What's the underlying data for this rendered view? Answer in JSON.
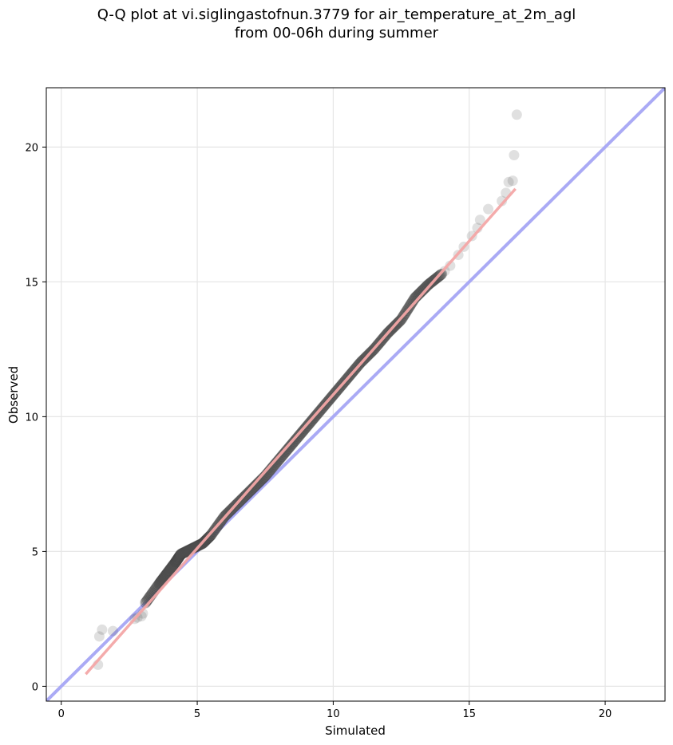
{
  "chart_data": {
    "type": "scatter",
    "title_line1": "Q-Q plot at vi.siglingastofnun.3779 for air_temperature_at_2m_agl",
    "title_line2": "from 00-06h during summer",
    "xlabel": "Simulated",
    "ylabel": "Observed",
    "xlim": [
      -0.55,
      22.2
    ],
    "ylim": [
      -0.55,
      22.2
    ],
    "xticks": [
      0,
      5,
      10,
      15,
      20
    ],
    "yticks": [
      0,
      5,
      10,
      15,
      20
    ],
    "grid": true,
    "colors": {
      "points": "#555555",
      "identity_line": "#aaaaf5",
      "fit_line": "#f3a6a6"
    },
    "identity_line": {
      "x": [
        -0.55,
        22.2
      ],
      "y": [
        -0.55,
        22.2
      ]
    },
    "fit_line": {
      "x": [
        0.9,
        16.7
      ],
      "y": [
        0.45,
        18.45
      ]
    },
    "points_sparse": [
      [
        1.35,
        0.8
      ],
      [
        1.4,
        1.85
      ],
      [
        1.5,
        2.1
      ],
      [
        1.9,
        2.05
      ],
      [
        2.7,
        2.5
      ],
      [
        2.8,
        2.55
      ],
      [
        2.95,
        2.6
      ],
      [
        3.0,
        2.7
      ],
      [
        15.1,
        16.7
      ],
      [
        15.3,
        17.0
      ],
      [
        15.4,
        17.3
      ],
      [
        15.7,
        17.7
      ],
      [
        16.2,
        18.0
      ],
      [
        16.35,
        18.3
      ],
      [
        16.45,
        18.7
      ],
      [
        16.6,
        18.75
      ],
      [
        16.65,
        19.7
      ],
      [
        16.75,
        21.2
      ],
      [
        14.8,
        16.3
      ],
      [
        14.6,
        16.0
      ],
      [
        14.3,
        15.6
      ],
      [
        14.1,
        15.4
      ]
    ],
    "points_dense": [
      [
        3.1,
        3.1
      ],
      [
        3.6,
        3.8
      ],
      [
        3.9,
        4.2
      ],
      [
        4.2,
        4.6
      ],
      [
        4.4,
        4.9
      ],
      [
        4.8,
        5.1
      ],
      [
        5.2,
        5.3
      ],
      [
        5.5,
        5.6
      ],
      [
        6.0,
        6.3
      ],
      [
        6.5,
        6.8
      ],
      [
        7.0,
        7.3
      ],
      [
        7.5,
        7.8
      ],
      [
        8.0,
        8.4
      ],
      [
        8.5,
        9.0
      ],
      [
        9.0,
        9.6
      ],
      [
        9.5,
        10.2
      ],
      [
        10.0,
        10.8
      ],
      [
        10.5,
        11.4
      ],
      [
        11.0,
        12.0
      ],
      [
        11.5,
        12.5
      ],
      [
        12.0,
        13.1
      ],
      [
        12.5,
        13.6
      ],
      [
        13.0,
        14.4
      ],
      [
        13.5,
        14.9
      ],
      [
        14.0,
        15.3
      ]
    ]
  }
}
